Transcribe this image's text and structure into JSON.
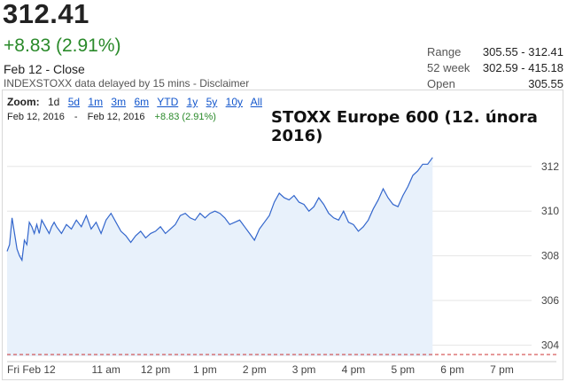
{
  "header": {
    "price": "312.41",
    "change": "+8.83 (2.91%)",
    "close_line": "Feb 12 - Close",
    "disclaimer_prefix": "INDEXSTOXX data delayed by 15 mins - ",
    "disclaimer_link": "Disclaimer"
  },
  "stats": [
    {
      "label": "Range",
      "value": "305.55 - 312.41"
    },
    {
      "label": "52 week",
      "value": "302.59 - 415.18"
    },
    {
      "label": "Open",
      "value": "305.55"
    }
  ],
  "zoom": {
    "label": "Zoom:",
    "options": [
      "1d",
      "5d",
      "1m",
      "3m",
      "6m",
      "YTD",
      "1y",
      "5y",
      "10y",
      "All"
    ]
  },
  "range_bar": {
    "start": "Feb 12, 2016",
    "sep": "-",
    "end": "Feb 12, 2016",
    "change": "+8.83 (2.91%)"
  },
  "chart_title": "STOXX Europe 600 (12. února 2016)",
  "colors": {
    "line": "#3366cc",
    "fill": "#e8f1fb",
    "positive": "#2a8a2a",
    "prev_close": "#cc3333"
  },
  "chart_data": {
    "type": "area",
    "x_tick_labels": [
      "Fri Feb 12",
      "11 am",
      "12 pm",
      "1 pm",
      "2 pm",
      "3 pm",
      "4 pm",
      "5 pm",
      "6 pm",
      "7 pm"
    ],
    "x_tick_hours": [
      9,
      11,
      12,
      13,
      14,
      15,
      16,
      17,
      18,
      19
    ],
    "y_tick_labels": [
      "304",
      "306",
      "308",
      "310",
      "312"
    ],
    "y_ticks": [
      304,
      306,
      308,
      310,
      312
    ],
    "xlim": [
      9,
      19.6
    ],
    "ylim": [
      303.5,
      313.5
    ],
    "previous_close": 303.58,
    "grid": "horizontal",
    "series": [
      {
        "x": [
          9.0,
          9.05,
          9.1,
          9.15,
          9.2,
          9.25,
          9.3,
          9.35,
          9.4,
          9.45,
          9.5,
          9.55,
          9.6,
          9.65,
          9.7,
          9.75,
          9.8,
          9.85,
          9.9,
          9.95,
          10.0,
          10.1,
          10.2,
          10.3,
          10.4,
          10.5,
          10.6,
          10.7,
          10.8,
          10.9,
          11.0,
          11.1,
          11.2,
          11.3,
          11.4,
          11.5,
          11.6,
          11.7,
          11.8,
          11.9,
          12.0,
          12.1,
          12.2,
          12.3,
          12.4,
          12.5,
          12.6,
          12.7,
          12.8,
          12.9,
          13.0,
          13.1,
          13.2,
          13.3,
          13.4,
          13.5,
          13.6,
          13.7,
          13.8,
          13.9,
          14.0,
          14.1,
          14.2,
          14.3,
          14.4,
          14.5,
          14.6,
          14.7,
          14.8,
          14.9,
          15.0,
          15.1,
          15.2,
          15.3,
          15.4,
          15.5,
          15.6,
          15.7,
          15.8,
          15.9,
          16.0,
          16.1,
          16.2,
          16.3,
          16.4,
          16.5,
          16.6,
          16.7,
          16.8,
          16.9,
          17.0,
          17.1,
          17.2,
          17.3,
          17.4,
          17.5,
          17.6
        ],
        "y": [
          308.2,
          308.5,
          309.7,
          309.0,
          308.3,
          308.0,
          307.8,
          308.7,
          308.5,
          309.5,
          309.3,
          309.0,
          309.4,
          309.0,
          309.6,
          309.4,
          309.2,
          309.0,
          309.3,
          309.5,
          309.3,
          309.0,
          309.4,
          309.2,
          309.6,
          309.3,
          309.8,
          309.2,
          309.5,
          309.0,
          309.6,
          309.9,
          309.5,
          309.1,
          308.9,
          308.6,
          308.9,
          309.1,
          308.8,
          309.0,
          309.1,
          309.3,
          309.0,
          309.2,
          309.4,
          309.8,
          309.9,
          309.7,
          309.6,
          309.9,
          309.7,
          309.9,
          310.0,
          309.9,
          309.7,
          309.4,
          309.5,
          309.6,
          309.3,
          309.0,
          308.7,
          309.2,
          309.5,
          309.8,
          310.4,
          310.8,
          310.6,
          310.5,
          310.7,
          310.4,
          310.3,
          310.0,
          310.2,
          310.6,
          310.3,
          309.9,
          309.7,
          309.6,
          310.0,
          309.5,
          309.4,
          309.1,
          309.3,
          309.6,
          310.1,
          310.5,
          311.0,
          310.6,
          310.3,
          310.2,
          310.7,
          311.1,
          311.6,
          311.8,
          312.1,
          312.1,
          312.4
        ]
      }
    ]
  }
}
